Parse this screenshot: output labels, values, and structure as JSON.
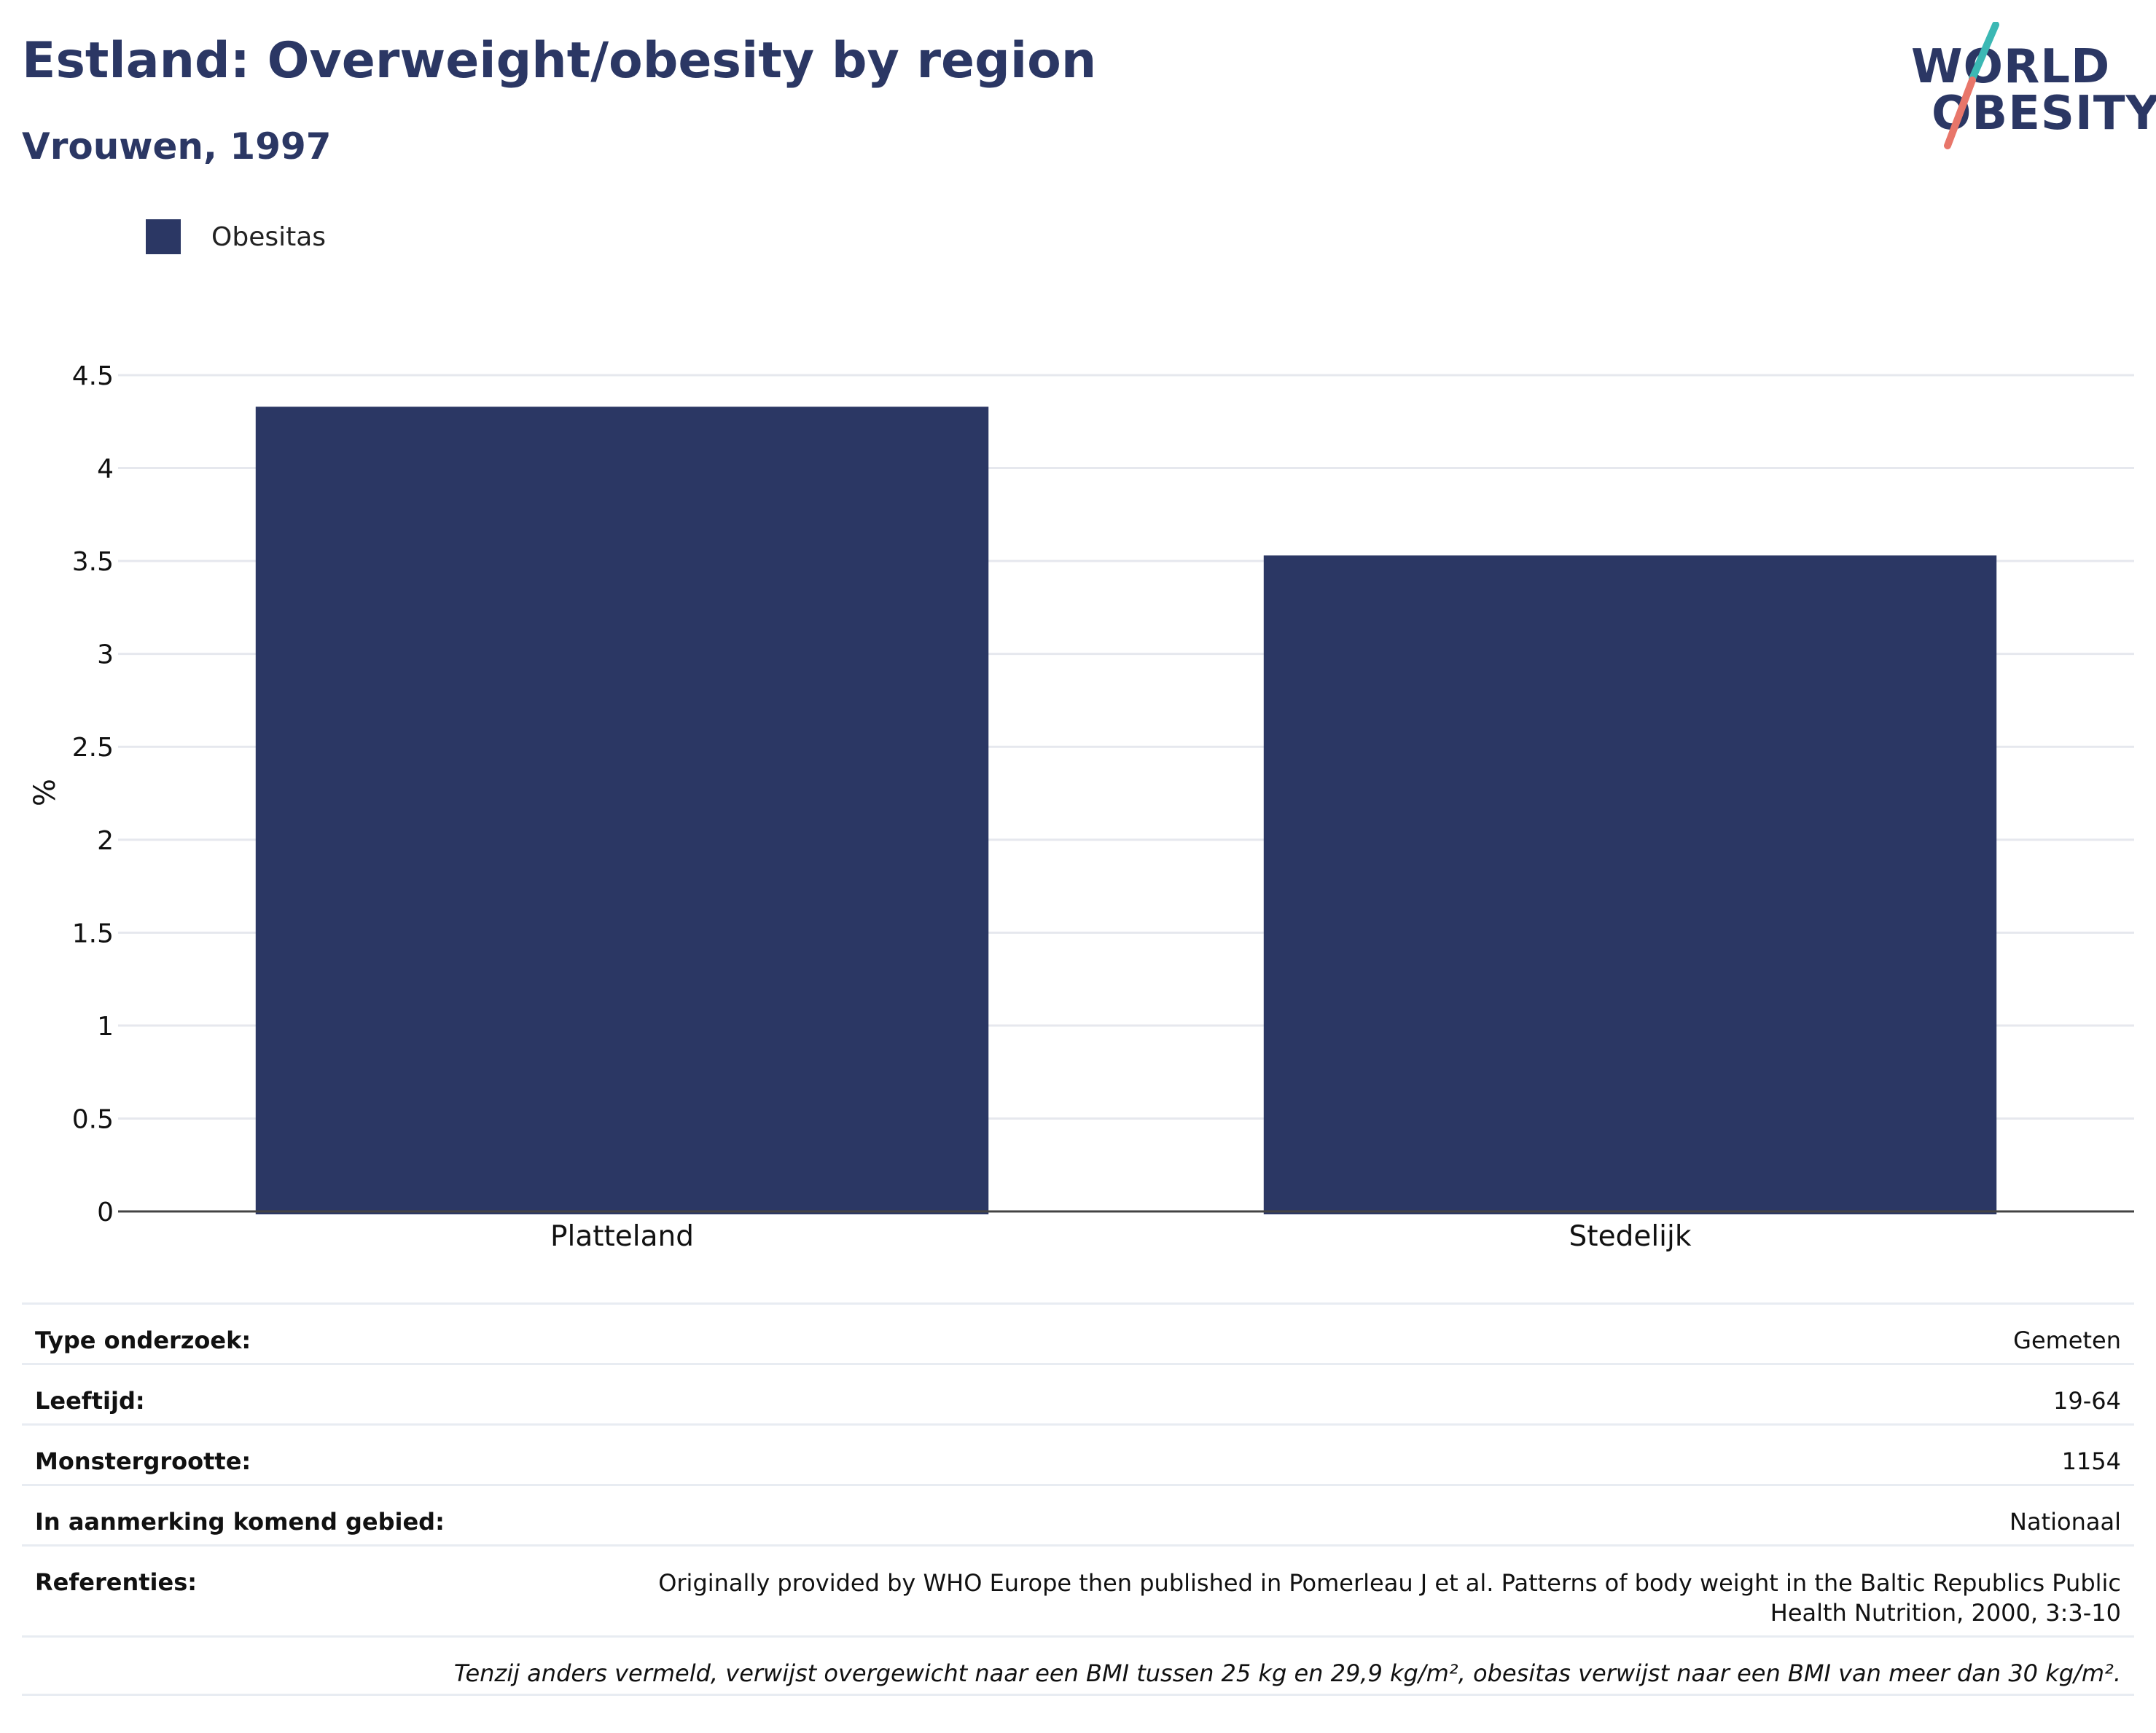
{
  "title": "Estland: Overweight/obesity by region",
  "subtitle": "Vrouwen, 1997",
  "logo": {
    "line1": "WORLD",
    "line2": "OBESITY",
    "accent_colors": [
      "#3bb8b4",
      "#e8766a"
    ]
  },
  "legend": {
    "label": "Obesitas",
    "color": "#2b3764"
  },
  "chart_data": {
    "type": "bar",
    "categories": [
      "Platteland",
      "Stedelijk"
    ],
    "series": [
      {
        "name": "Obesitas",
        "values": [
          4.33,
          3.53
        ],
        "color": "#2b3764"
      }
    ],
    "ylabel": "%",
    "xlabel": "",
    "ylim": [
      0,
      4.5
    ],
    "yticks": [
      0,
      0.5,
      1,
      1.5,
      2,
      2.5,
      3,
      3.5,
      4,
      4.5
    ],
    "ytick_labels": [
      "0",
      "0.5",
      "1",
      "1.5",
      "2",
      "2.5",
      "3",
      "3.5",
      "4",
      "4.5"
    ],
    "grid": true,
    "legend_position": "top-left"
  },
  "info": {
    "type_label": "Type onderzoek:",
    "type_value": "Gemeten",
    "age_label": "Leeftijd:",
    "age_value": "19-64",
    "sample_label": "Monstergrootte:",
    "sample_value": "1154",
    "area_label": "In aanmerking komend gebied:",
    "area_value": "Nationaal",
    "refs_label": "Referenties:",
    "refs_value": "Originally provided by WHO Europe then published in Pomerleau J et al. Patterns of body weight in the Baltic Republics Public Health Nutrition, 2000, 3:3-10",
    "note": "Tenzij anders vermeld, verwijst overgewicht naar een BMI tussen 25 kg en 29,9 kg/m², obesitas verwijst naar een BMI van meer dan 30 kg/m²."
  }
}
